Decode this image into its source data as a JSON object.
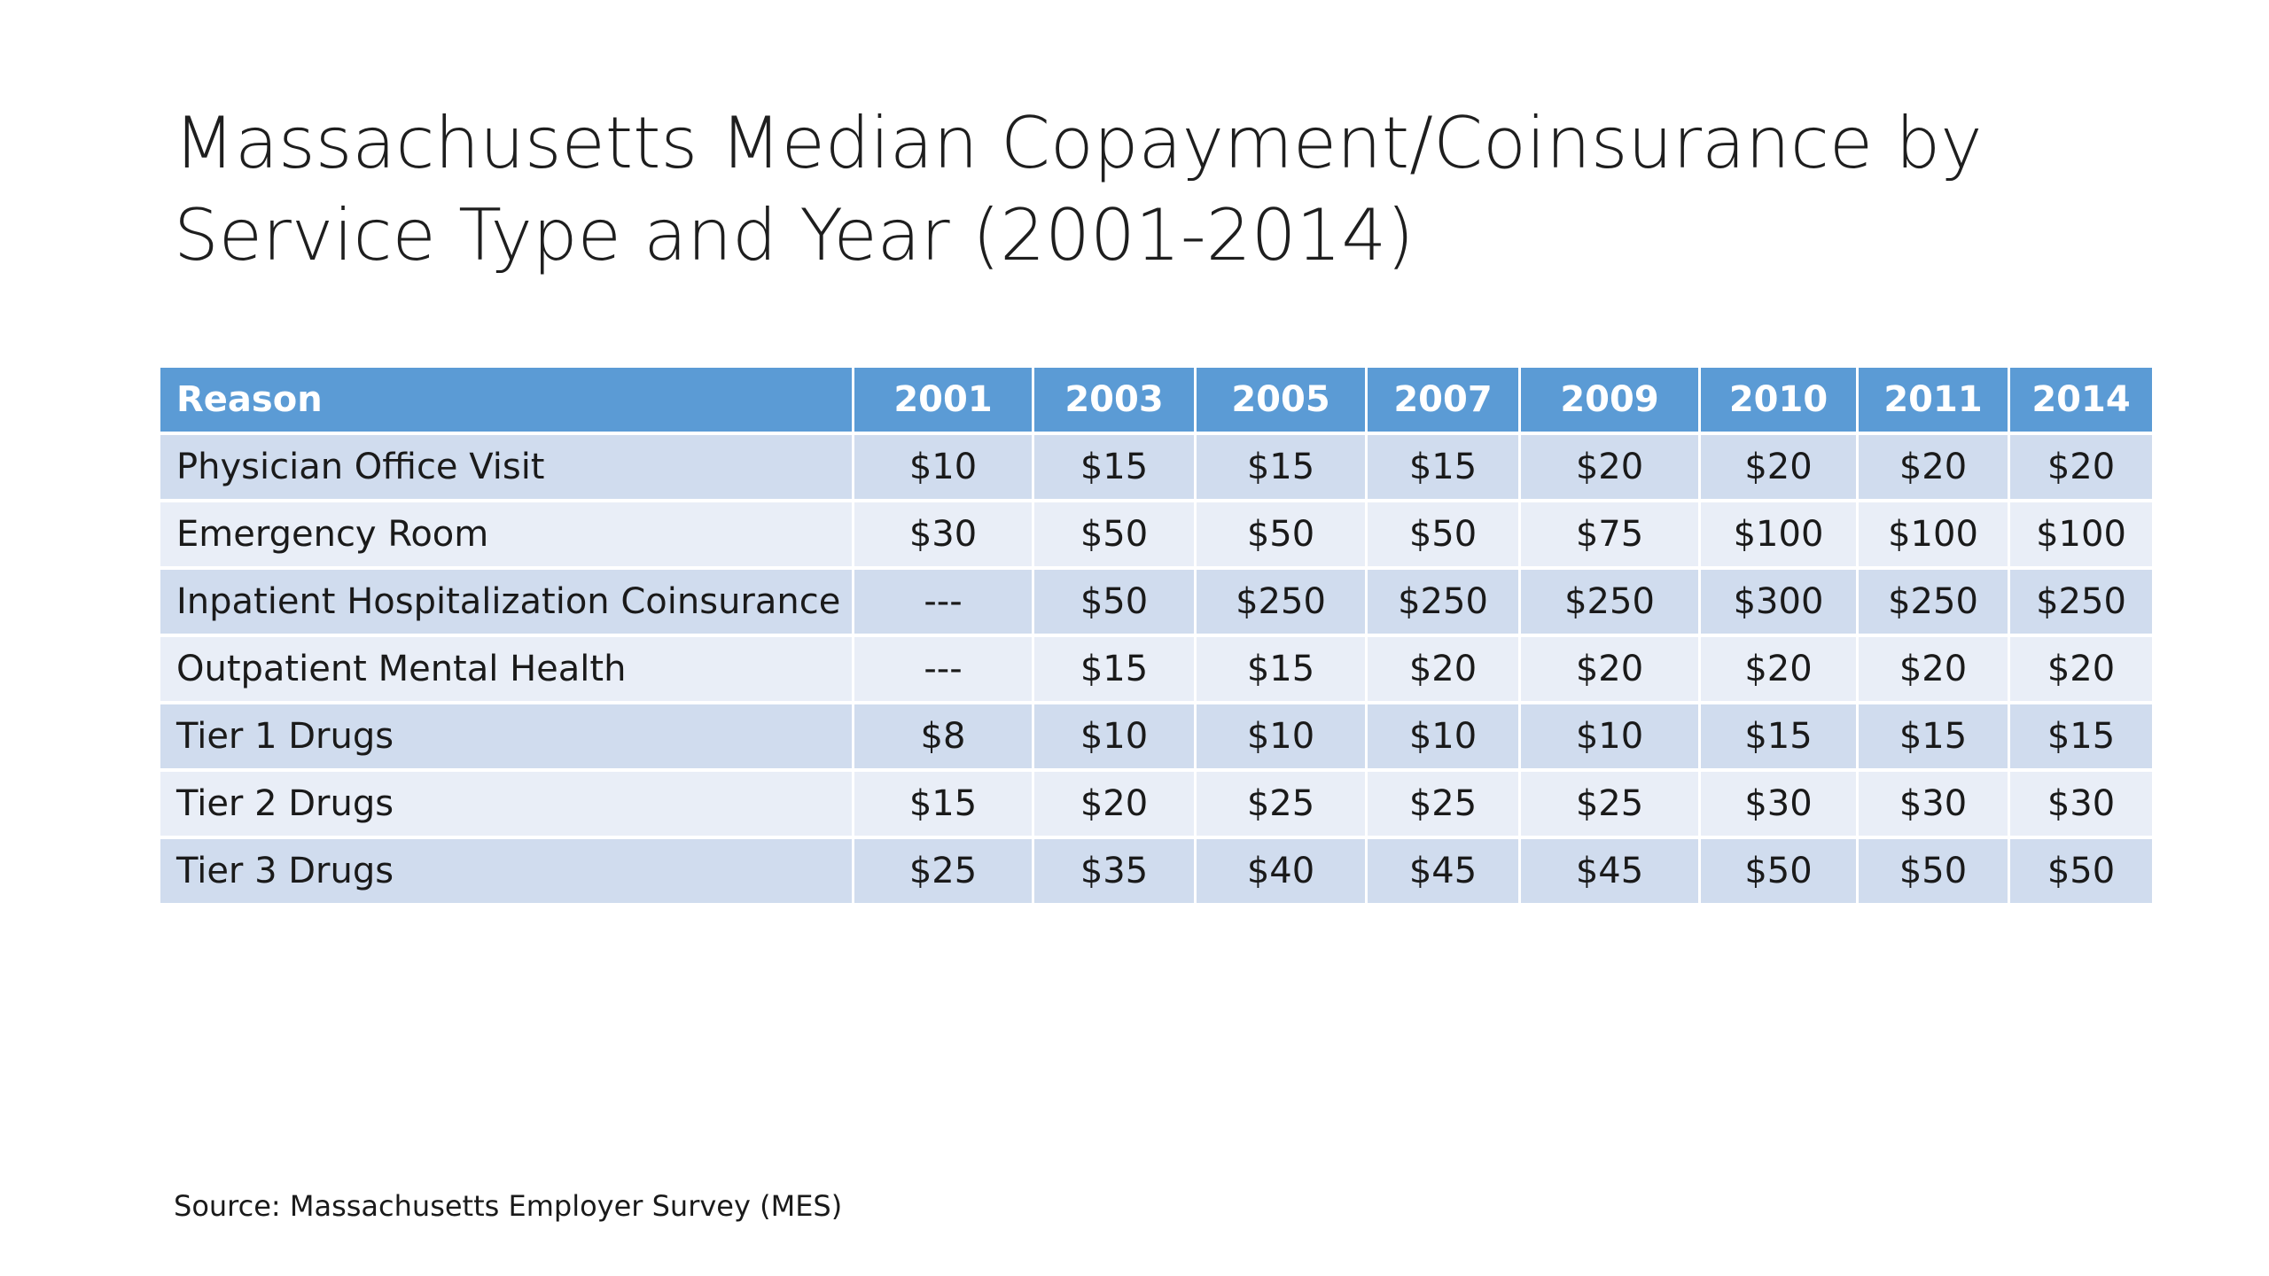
{
  "title": {
    "line1": "Massachusetts Median Copayment/Coinsurance by",
    "line2": "Service Type and Year (2001-2014)"
  },
  "table": {
    "headers": [
      "Reason",
      "2001",
      "2003",
      "2005",
      "2007",
      "2009",
      "2010",
      "2011",
      "2014"
    ],
    "rows": [
      [
        "Physician Office Visit",
        "$10",
        "$15",
        "$15",
        "$15",
        "$20",
        "$20",
        "$20",
        "$20"
      ],
      [
        "Emergency Room",
        "$30",
        "$50",
        "$50",
        "$50",
        "$75",
        "$100",
        "$100",
        "$100"
      ],
      [
        "Inpatient Hospitalization Coinsurance",
        "---",
        "$50",
        "$250",
        "$250",
        "$250",
        "$300",
        "$250",
        "$250"
      ],
      [
        "Outpatient Mental Health",
        "---",
        "$15",
        "$15",
        "$20",
        "$20",
        "$20",
        "$20",
        "$20"
      ],
      [
        "Tier 1 Drugs",
        "$8",
        "$10",
        "$10",
        "$10",
        "$10",
        "$15",
        "$15",
        "$15"
      ],
      [
        "Tier 2 Drugs",
        "$15",
        "$20",
        "$25",
        "$25",
        "$25",
        "$30",
        "$30",
        "$30"
      ],
      [
        "Tier 3 Drugs",
        "$25",
        "$35",
        "$40",
        "$45",
        "$45",
        "$50",
        "$50",
        "$50"
      ]
    ]
  },
  "source": "Source: Massachusetts Employer Survey (MES)",
  "colors": {
    "header_bg": "#5b9bd5",
    "row_band_dark": "#d0dcee",
    "row_band_light": "#e9eef7"
  }
}
